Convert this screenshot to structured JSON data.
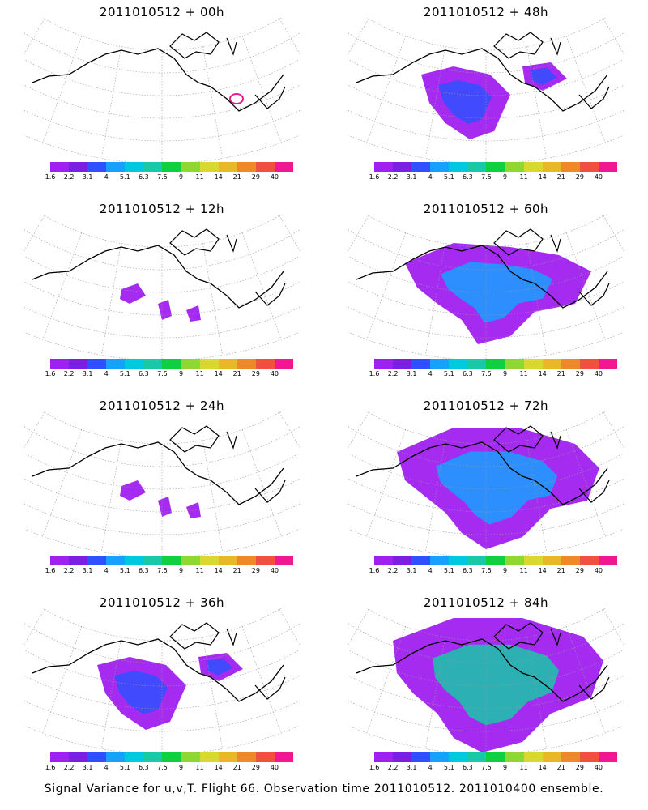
{
  "colorbar": {
    "colors": [
      "#a020f0",
      "#7b20e0",
      "#3050ff",
      "#18a0ff",
      "#00c8e0",
      "#18c8a8",
      "#10d040",
      "#90d830",
      "#d8d830",
      "#e8b828",
      "#f08828",
      "#f05040",
      "#f01890"
    ],
    "labels": [
      "1.6",
      "2.2",
      "3.1",
      "4",
      "5.1",
      "6.3",
      "7.5",
      "9",
      "11",
      "14",
      "21",
      "29",
      "40"
    ]
  },
  "panels": [
    {
      "title": "2011010512 + 00h",
      "intensity": 0
    },
    {
      "title": "2011010512 + 48h",
      "intensity": 2
    },
    {
      "title": "2011010512 + 12h",
      "intensity": 1
    },
    {
      "title": "2011010512 + 60h",
      "intensity": 3
    },
    {
      "title": "2011010512 + 24h",
      "intensity": 1
    },
    {
      "title": "2011010512 + 72h",
      "intensity": 4
    },
    {
      "title": "2011010512 + 36h",
      "intensity": 2
    },
    {
      "title": "2011010512 + 84h",
      "intensity": 5
    }
  ],
  "footer": "Signal Variance for u,v,T. Flight 66. Observation time 2011010512. 2011010400 ensemble."
}
